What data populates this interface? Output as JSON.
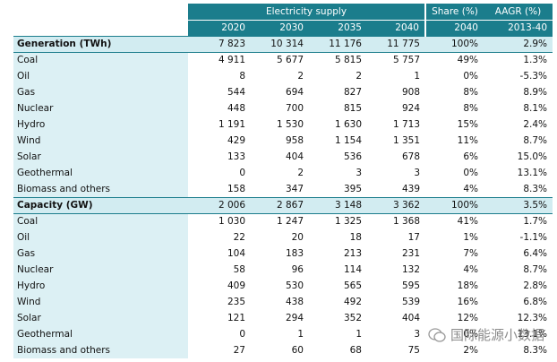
{
  "header": {
    "group": "Electricity supply",
    "share": "Share (%)",
    "aagr": "AAGR (%)",
    "columns": [
      "2020",
      "2030",
      "2035",
      "2040",
      "2040",
      "2013-40"
    ]
  },
  "sections": [
    {
      "title": "Generation (TWh)",
      "values": [
        "7 823",
        "10 314",
        "11 176",
        "11 775",
        "100%",
        "2.9%"
      ],
      "rows": [
        {
          "label": "Coal",
          "values": [
            "4 911",
            "5 677",
            "5 815",
            "5 757",
            "49%",
            "1.3%"
          ]
        },
        {
          "label": "Oil",
          "values": [
            "8",
            "2",
            "2",
            "1",
            "0%",
            "-5.3%"
          ]
        },
        {
          "label": "Gas",
          "values": [
            "544",
            "694",
            "827",
            "908",
            "8%",
            "8.9%"
          ]
        },
        {
          "label": "Nuclear",
          "values": [
            "448",
            "700",
            "815",
            "924",
            "8%",
            "8.1%"
          ]
        },
        {
          "label": "Hydro",
          "values": [
            "1 191",
            "1 530",
            "1 630",
            "1 713",
            "15%",
            "2.4%"
          ]
        },
        {
          "label": "Wind",
          "values": [
            "429",
            "958",
            "1 154",
            "1 351",
            "11%",
            "8.7%"
          ]
        },
        {
          "label": "Solar",
          "values": [
            "133",
            "404",
            "536",
            "678",
            "6%",
            "15.0%"
          ]
        },
        {
          "label": "Geothermal",
          "values": [
            "0",
            "2",
            "3",
            "3",
            "0%",
            "13.1%"
          ]
        },
        {
          "label": "Biomass and others",
          "values": [
            "158",
            "347",
            "395",
            "439",
            "4%",
            "8.3%"
          ]
        }
      ]
    },
    {
      "title": "Capacity (GW)",
      "values": [
        "2 006",
        "2 867",
        "3 148",
        "3 362",
        "100%",
        "3.5%"
      ],
      "rows": [
        {
          "label": "Coal",
          "values": [
            "1 030",
            "1 247",
            "1 325",
            "1 368",
            "41%",
            "1.7%"
          ]
        },
        {
          "label": "Oil",
          "values": [
            "22",
            "20",
            "18",
            "17",
            "1%",
            "-1.1%"
          ]
        },
        {
          "label": "Gas",
          "values": [
            "104",
            "183",
            "213",
            "231",
            "7%",
            "6.4%"
          ]
        },
        {
          "label": "Nuclear",
          "values": [
            "58",
            "96",
            "114",
            "132",
            "4%",
            "8.7%"
          ]
        },
        {
          "label": "Hydro",
          "values": [
            "409",
            "530",
            "565",
            "595",
            "18%",
            "2.8%"
          ]
        },
        {
          "label": "Wind",
          "values": [
            "235",
            "438",
            "492",
            "539",
            "16%",
            "6.8%"
          ]
        },
        {
          "label": "Solar",
          "values": [
            "121",
            "294",
            "352",
            "404",
            "12%",
            "12.3%"
          ]
        },
        {
          "label": "Geothermal",
          "values": [
            "0",
            "1",
            "1",
            "3",
            "0%",
            "13.1%"
          ]
        },
        {
          "label": "Biomass and others",
          "values": [
            "27",
            "60",
            "68",
            "75",
            "2%",
            "8.3%"
          ]
        }
      ]
    }
  ],
  "watermark": "国际能源小数据"
}
